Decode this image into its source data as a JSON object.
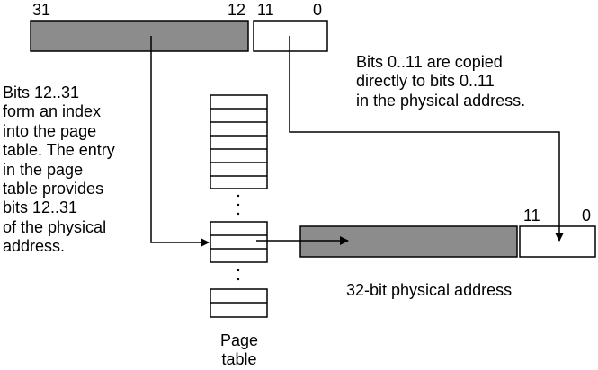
{
  "virtual_address": {
    "high_bits_left_label": "31",
    "high_bits_right_label": "12",
    "low_bits_left_label": "11",
    "low_bits_right_label": "0"
  },
  "physical_address": {
    "low_bits_left_label": "11",
    "low_bits_right_label": "0",
    "caption": "32-bit physical address"
  },
  "notes": {
    "copy_lines": [
      "Bits 0..11 are copied",
      "directly to bits 0..11",
      "in the physical address."
    ],
    "index_lines": [
      "Bits 12..31",
      "form an index",
      "into the page",
      "table. The entry",
      "in the page",
      "table provides",
      "bits 12..31",
      "of the physical",
      "address."
    ]
  },
  "page_table": {
    "caption_lines": [
      "Page",
      "table"
    ]
  },
  "colors": {
    "shaded_field": "#8c8c8c",
    "stroke": "#000000",
    "background": "#ffffff"
  }
}
